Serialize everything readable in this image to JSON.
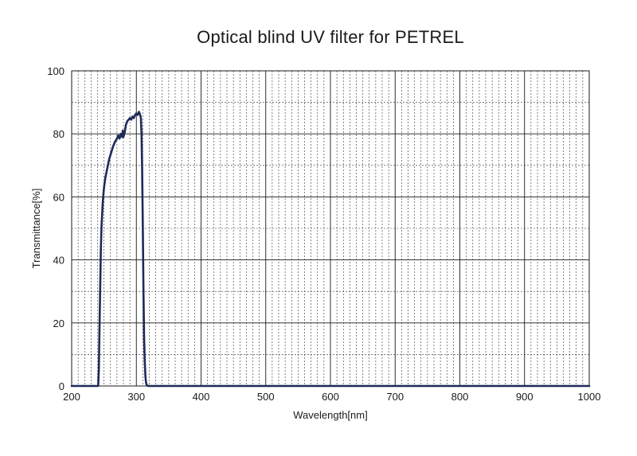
{
  "chart_data": {
    "type": "line",
    "title": "Optical blind UV filter for PETREL",
    "xlabel": "Wavelength[nm]",
    "ylabel": "Transmittance[%]",
    "xlim": [
      200,
      1000
    ],
    "ylim": [
      0,
      100
    ],
    "x_ticks": [
      200,
      300,
      400,
      500,
      600,
      700,
      800,
      900,
      1000
    ],
    "y_ticks": [
      0,
      20,
      40,
      60,
      80,
      100
    ],
    "grid": true,
    "legend": "none",
    "line_color": "#1f2a5a",
    "series": [
      {
        "x": [
          200,
          240,
          241,
          242,
          243,
          244,
          245,
          246,
          248,
          250,
          252,
          255,
          258,
          261,
          264,
          267,
          270,
          272,
          274,
          276,
          278,
          279,
          280,
          282,
          284,
          286,
          288,
          290,
          292,
          294,
          296,
          298,
          300,
          302,
          304,
          305,
          306,
          307,
          308,
          309,
          310,
          311,
          312,
          313,
          314,
          315,
          316,
          318,
          320,
          330,
          400,
          500,
          600,
          700,
          800,
          900,
          1000
        ],
        "y": [
          0,
          0,
          0,
          5,
          18,
          30,
          42,
          50,
          58,
          63,
          66,
          69,
          72,
          74,
          76,
          77.5,
          78.5,
          79.5,
          78.5,
          80,
          79,
          81,
          79,
          80.5,
          83,
          84,
          84.5,
          85,
          84.5,
          85.5,
          85,
          86,
          86.5,
          86,
          87,
          86.5,
          86,
          85,
          80,
          68,
          50,
          30,
          15,
          8,
          3,
          1,
          0.3,
          0,
          0,
          0,
          0,
          0,
          0,
          0,
          0,
          0,
          0
        ]
      }
    ]
  }
}
